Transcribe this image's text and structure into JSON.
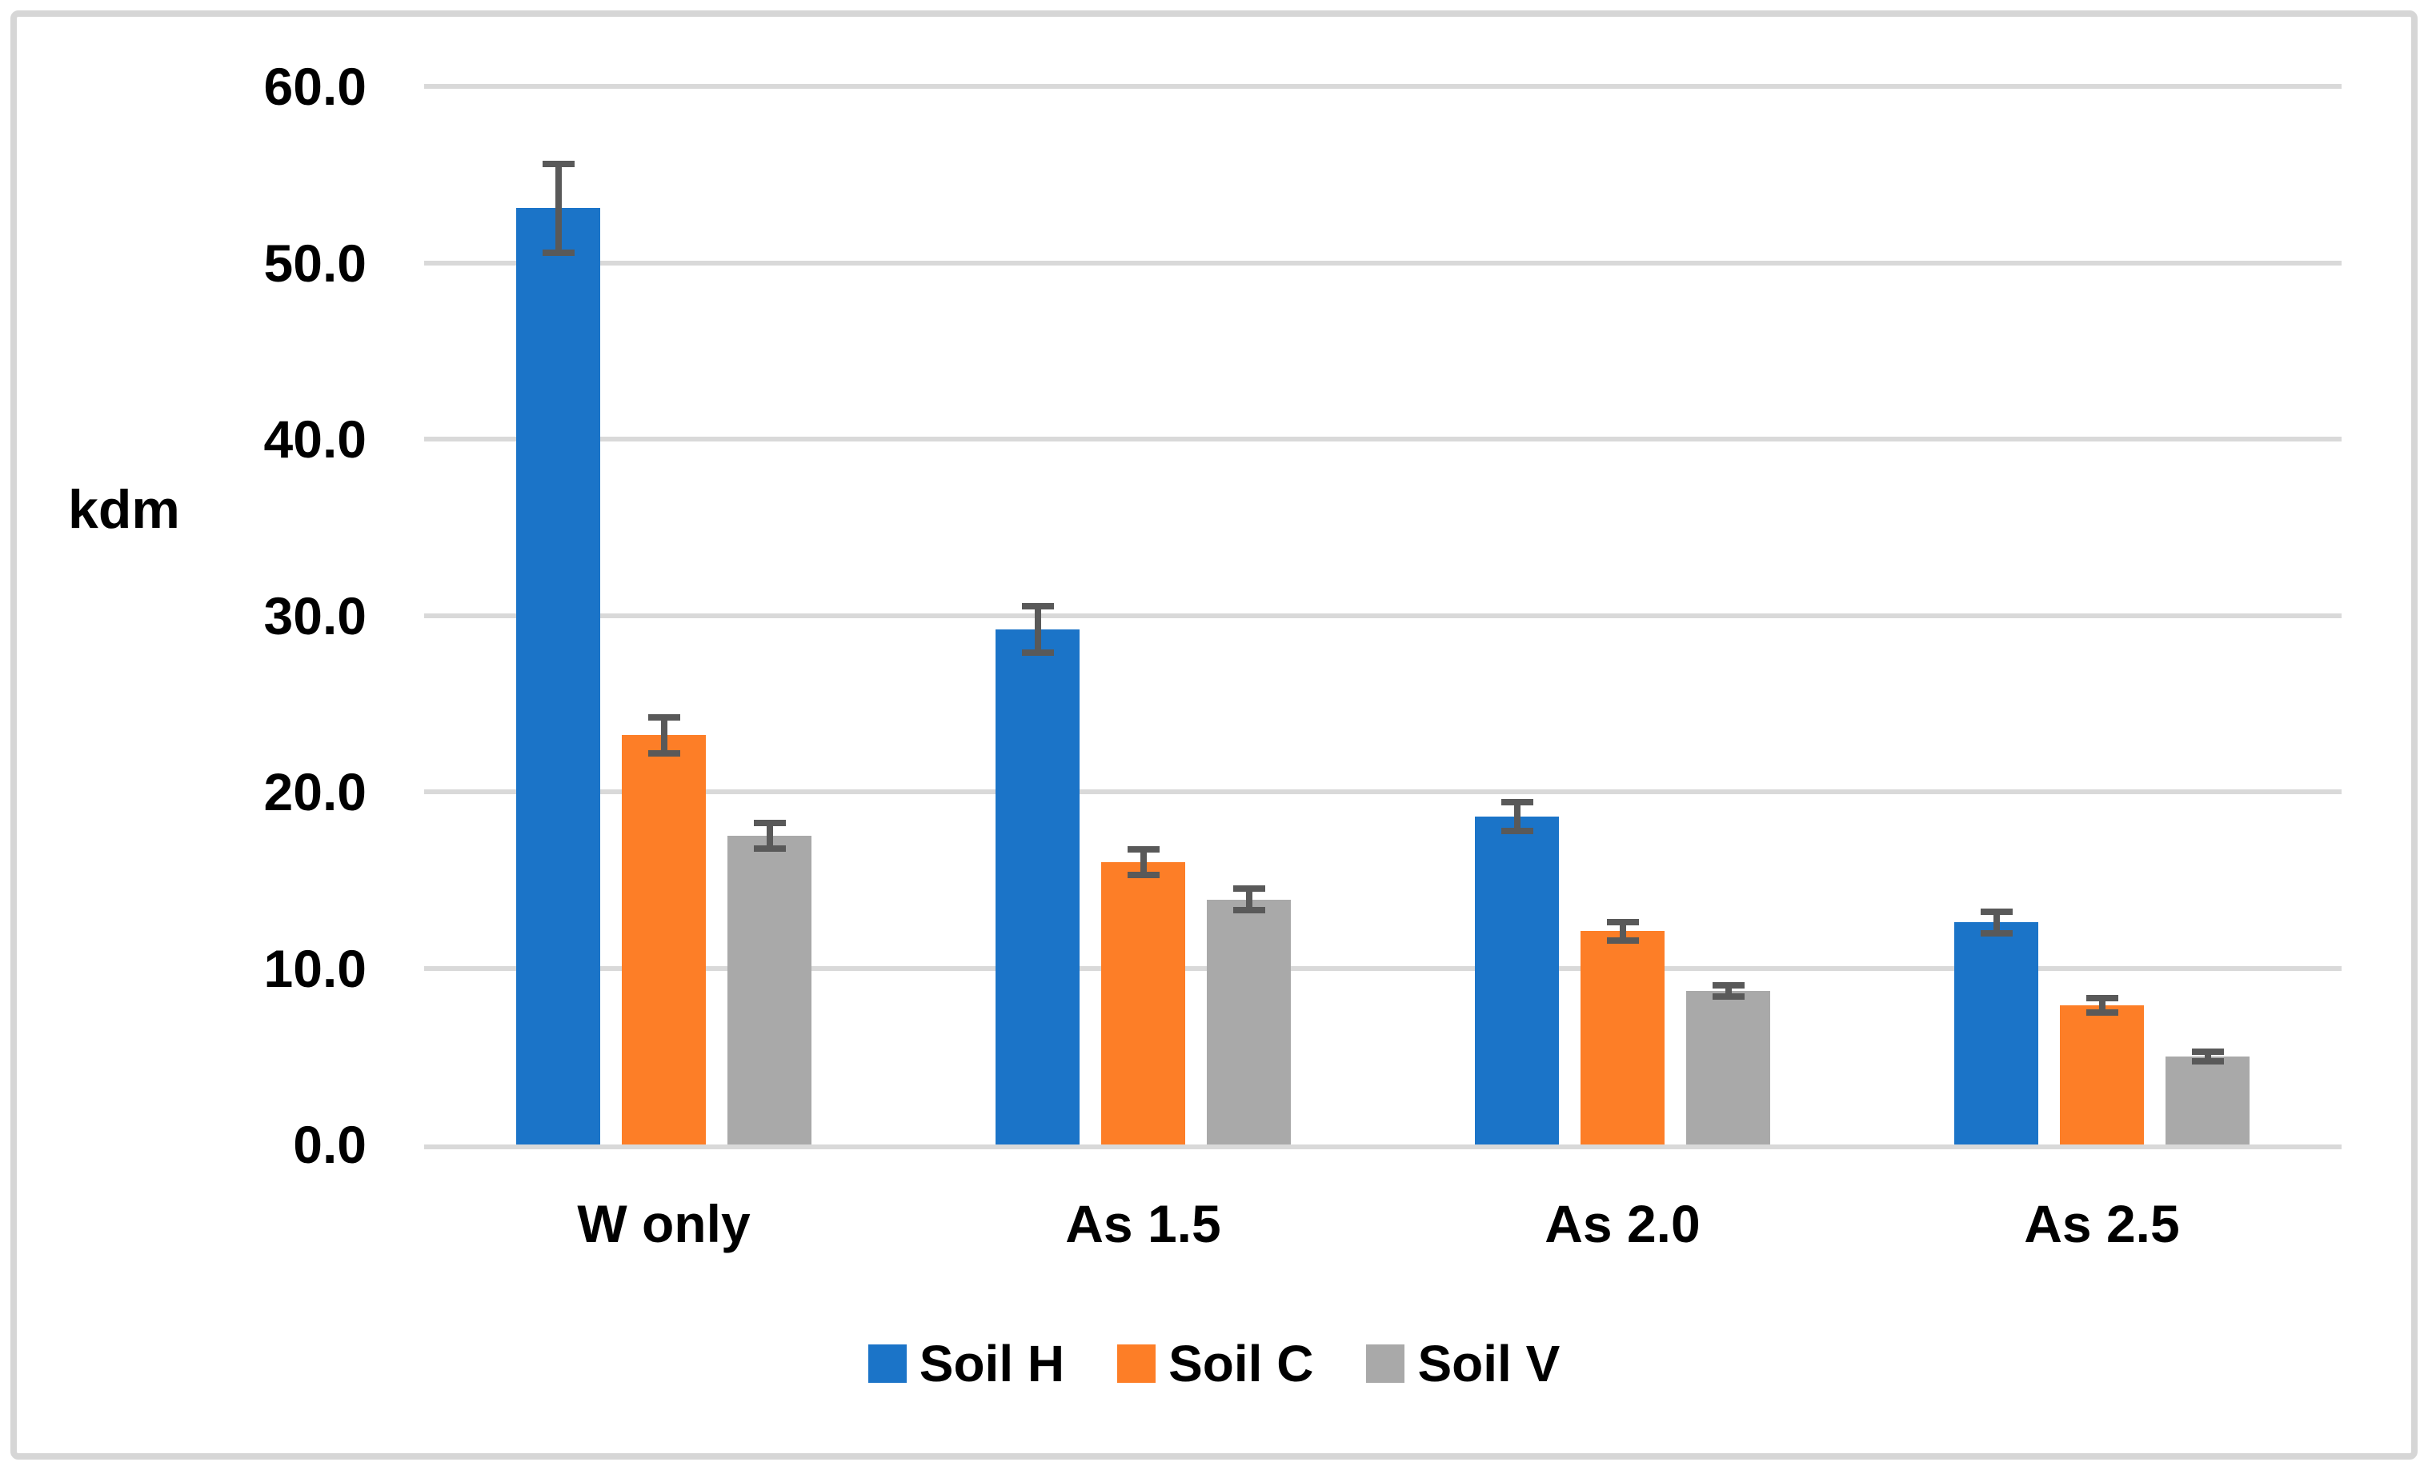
{
  "chart_data": {
    "type": "bar",
    "title": "",
    "xlabel": "",
    "ylabel": "kdm",
    "categories": [
      "W only",
      "As 1.5",
      "As 2.0",
      "As 2.5"
    ],
    "series": [
      {
        "name": "Soil H",
        "color": "#1B74C8",
        "values": [
          53.1,
          29.2,
          18.6,
          12.6
        ],
        "errors": [
          2.7,
          1.5,
          1.0,
          0.8
        ]
      },
      {
        "name": "Soil C",
        "color": "#FD7E27",
        "values": [
          23.2,
          16.0,
          12.1,
          7.9
        ],
        "errors": [
          1.2,
          0.9,
          0.7,
          0.6
        ]
      },
      {
        "name": "Soil V",
        "color": "#A9A9A9",
        "values": [
          17.5,
          13.9,
          8.7,
          5.0
        ],
        "errors": [
          0.9,
          0.8,
          0.5,
          0.45
        ]
      }
    ],
    "error_bars": true,
    "error_bar_color": "#595959",
    "y_axis": {
      "min": 0,
      "max": 60,
      "step": 10,
      "tick_labels": [
        "0.0",
        "10.0",
        "20.0",
        "30.0",
        "40.0",
        "50.0",
        "60.0"
      ]
    },
    "grid": true,
    "gridline_color": "#D9D9D9",
    "frame_color": "#D6D6D6",
    "legend_position": "bottom"
  }
}
